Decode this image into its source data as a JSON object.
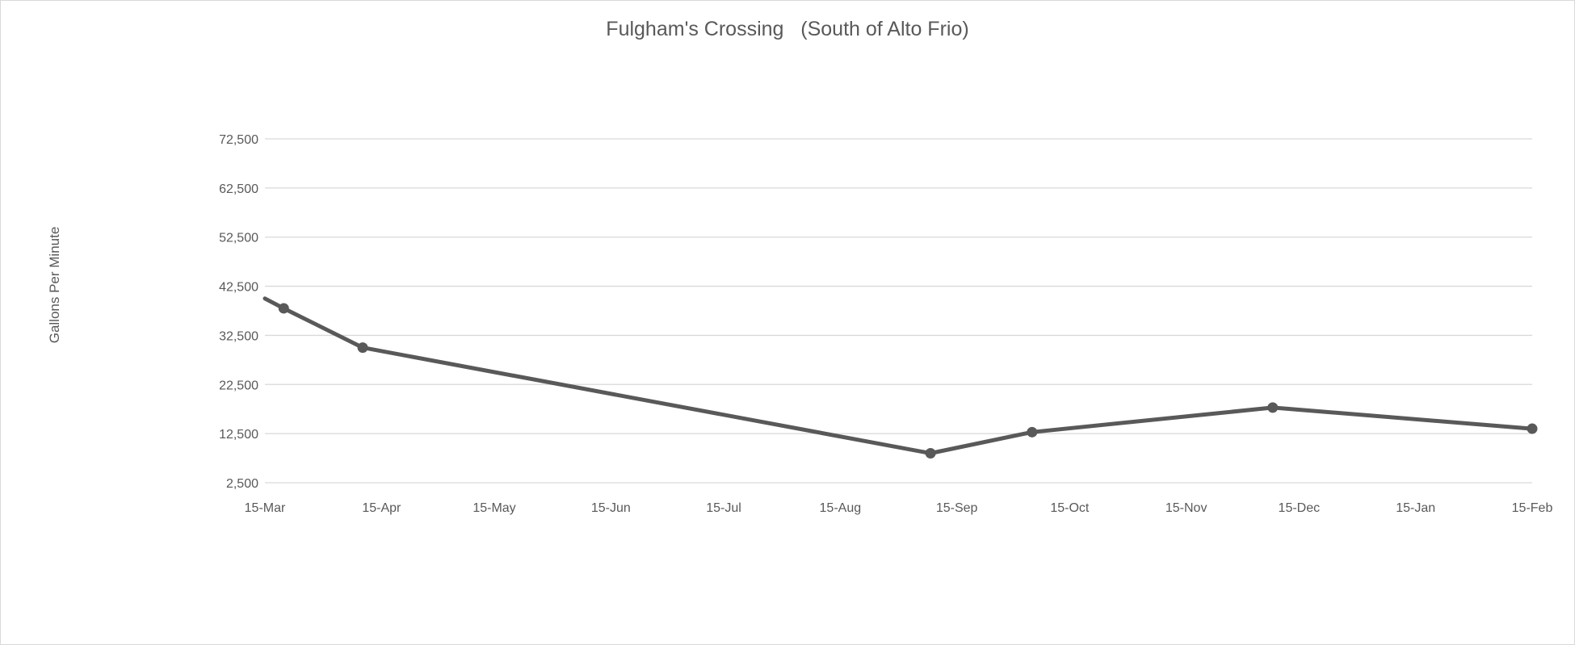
{
  "chart_data": {
    "type": "line",
    "title": "Fulgham's Crossing   (South of Alto Frio)",
    "xlabel": "",
    "ylabel": "Gallons Per Minute",
    "x_tick_labels": [
      "15-Mar",
      "15-Apr",
      "15-May",
      "15-Jun",
      "15-Jul",
      "15-Aug",
      "15-Sep",
      "15-Oct",
      "15-Nov",
      "15-Dec",
      "15-Jan",
      "15-Feb"
    ],
    "y_tick_labels": [
      "2,500",
      "12,500",
      "22,500",
      "32,500",
      "42,500",
      "52,500",
      "62,500",
      "72,500"
    ],
    "xlim": [
      "15-Mar",
      "15-Feb"
    ],
    "ylim": [
      2500,
      72500
    ],
    "grid": true,
    "legend": "none",
    "series": [
      {
        "color": "#595959",
        "points": [
          {
            "x": "15-Mar",
            "y": 40000
          },
          {
            "x": "20-Mar",
            "y": 38000
          },
          {
            "x": "10-Apr",
            "y": 30000
          },
          {
            "x": "8-Sep",
            "y": 8500
          },
          {
            "x": "5-Oct",
            "y": 12800
          },
          {
            "x": "8-Dec",
            "y": 17800
          },
          {
            "x": "15-Feb",
            "y": 13500
          }
        ],
        "marker_points": [
          "20-Mar",
          "10-Apr",
          "8-Sep",
          "5-Oct",
          "8-Dec",
          "15-Feb"
        ]
      }
    ]
  }
}
